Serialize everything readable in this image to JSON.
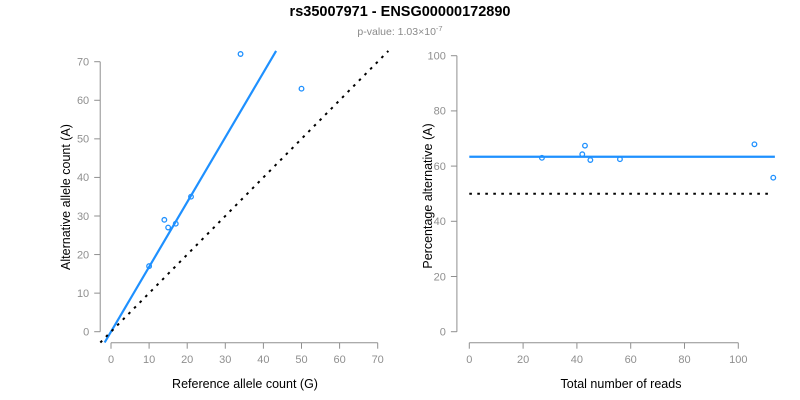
{
  "header": {
    "title": "rs35007971 - ENSG00000172890",
    "pvalue_base": "p-value: 1.03×10",
    "pvalue_exponent": "-7"
  },
  "colors": {
    "accent_blue": "#1E90FF",
    "axis_gray": "#8f8f8f",
    "tick_label_gray": "#8f8f8f",
    "title_black": "#000000",
    "subtitle_gray": "#8a8a8a"
  },
  "chart_data": [
    {
      "type": "scatter",
      "name": "allele-counts-plot",
      "xlabel": "Reference allele count (G)",
      "ylabel": "Alternative allele count (A)",
      "xlim": [
        0,
        70
      ],
      "ylim": [
        0,
        70
      ],
      "xticks": [
        0,
        10,
        20,
        30,
        40,
        50,
        60,
        70
      ],
      "yticks": [
        0,
        10,
        20,
        30,
        40,
        50,
        60,
        70
      ],
      "grid": false,
      "points": [
        [
          10,
          17
        ],
        [
          14,
          29
        ],
        [
          15,
          27
        ],
        [
          17,
          28
        ],
        [
          21,
          35
        ],
        [
          34,
          72
        ],
        [
          50,
          63
        ]
      ],
      "lines": [
        {
          "name": "fit-line",
          "slope": 1.68,
          "intercept": 0,
          "style": "solid",
          "color": "#1E90FF"
        },
        {
          "name": "identity-line",
          "slope": 1,
          "intercept": 0,
          "style": "dotted",
          "color": "#000000"
        }
      ]
    },
    {
      "type": "scatter",
      "name": "percentage-alternative-plot",
      "xlabel": "Total number of reads",
      "ylabel": "Percentage alternative (A)",
      "xlim": [
        0,
        113
      ],
      "ylim": [
        0,
        100
      ],
      "xticks": [
        0,
        20,
        40,
        60,
        80,
        100
      ],
      "yticks": [
        0,
        20,
        40,
        60,
        80,
        100
      ],
      "grid": false,
      "points": [
        [
          27,
          63.0
        ],
        [
          42,
          64.3
        ],
        [
          43,
          67.4
        ],
        [
          45,
          62.2
        ],
        [
          56,
          62.5
        ],
        [
          106,
          67.9
        ],
        [
          113,
          55.8
        ]
      ],
      "lines": [
        {
          "name": "fit-line",
          "y": 63.4,
          "x_from": 0,
          "x_to": 113.6,
          "style": "solid",
          "color": "#1E90FF"
        },
        {
          "name": "null-line",
          "y": 50,
          "x_from": 0,
          "x_to": 112.5,
          "style": "dotted",
          "color": "#000000"
        }
      ]
    }
  ]
}
